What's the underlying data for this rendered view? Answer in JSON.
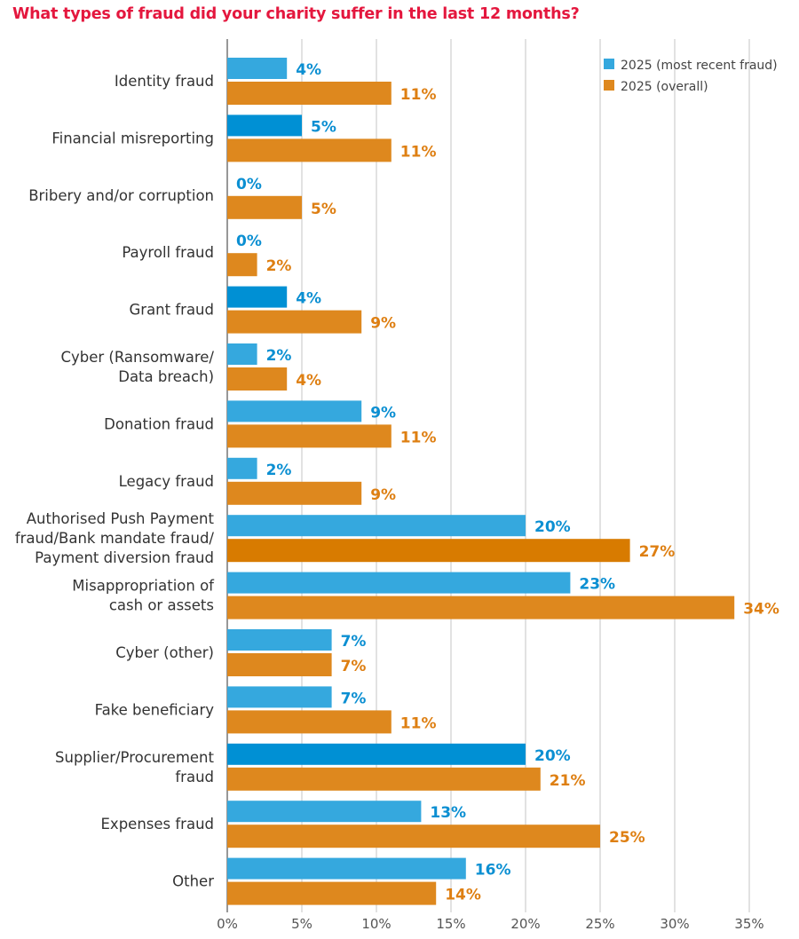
{
  "chart_data": {
    "type": "bar",
    "orientation": "horizontal",
    "title": "What types of fraud did your charity suffer in the last 12 months?",
    "categories": [
      "Identity fraud",
      "Financial misreporting",
      "Bribery and/or corruption",
      "Payroll fraud",
      "Grant fraud",
      "Cyber (Ransomware/\nData breach)",
      "Donation fraud",
      "Legacy fraud",
      "Authorised Push Payment\nfraud/Bank mandate fraud/\nPayment diversion fraud",
      "Misappropriation of\ncash or assets",
      "Cyber (other)",
      "Fake beneficiary",
      "Supplier/Procurement\nfraud",
      "Expenses fraud",
      "Other"
    ],
    "series": [
      {
        "name": "2025 (most recent fraud)",
        "color": "#35a8de",
        "values": [
          4,
          5,
          0,
          0,
          4,
          2,
          9,
          2,
          20,
          23,
          7,
          7,
          20,
          13,
          16
        ]
      },
      {
        "name": "2025 (overall)",
        "color": "#de881e",
        "values": [
          11,
          11,
          5,
          2,
          9,
          4,
          11,
          9,
          27,
          34,
          7,
          11,
          21,
          25,
          14
        ]
      }
    ],
    "highlight_colors": {
      "blue": "#0090d4",
      "orange": "#d87b00"
    },
    "highlighted": {
      "blue": [
        1,
        4,
        12
      ],
      "orange": [
        8
      ]
    },
    "value_label_colors": [
      "#0b8fd2",
      "#de7f12"
    ],
    "xlim": [
      0,
      35
    ],
    "xticks": [
      "0%",
      "5%",
      "10%",
      "15%",
      "20%",
      "25%",
      "30%",
      "35%"
    ],
    "grid": true,
    "legend_position": "top-right"
  }
}
